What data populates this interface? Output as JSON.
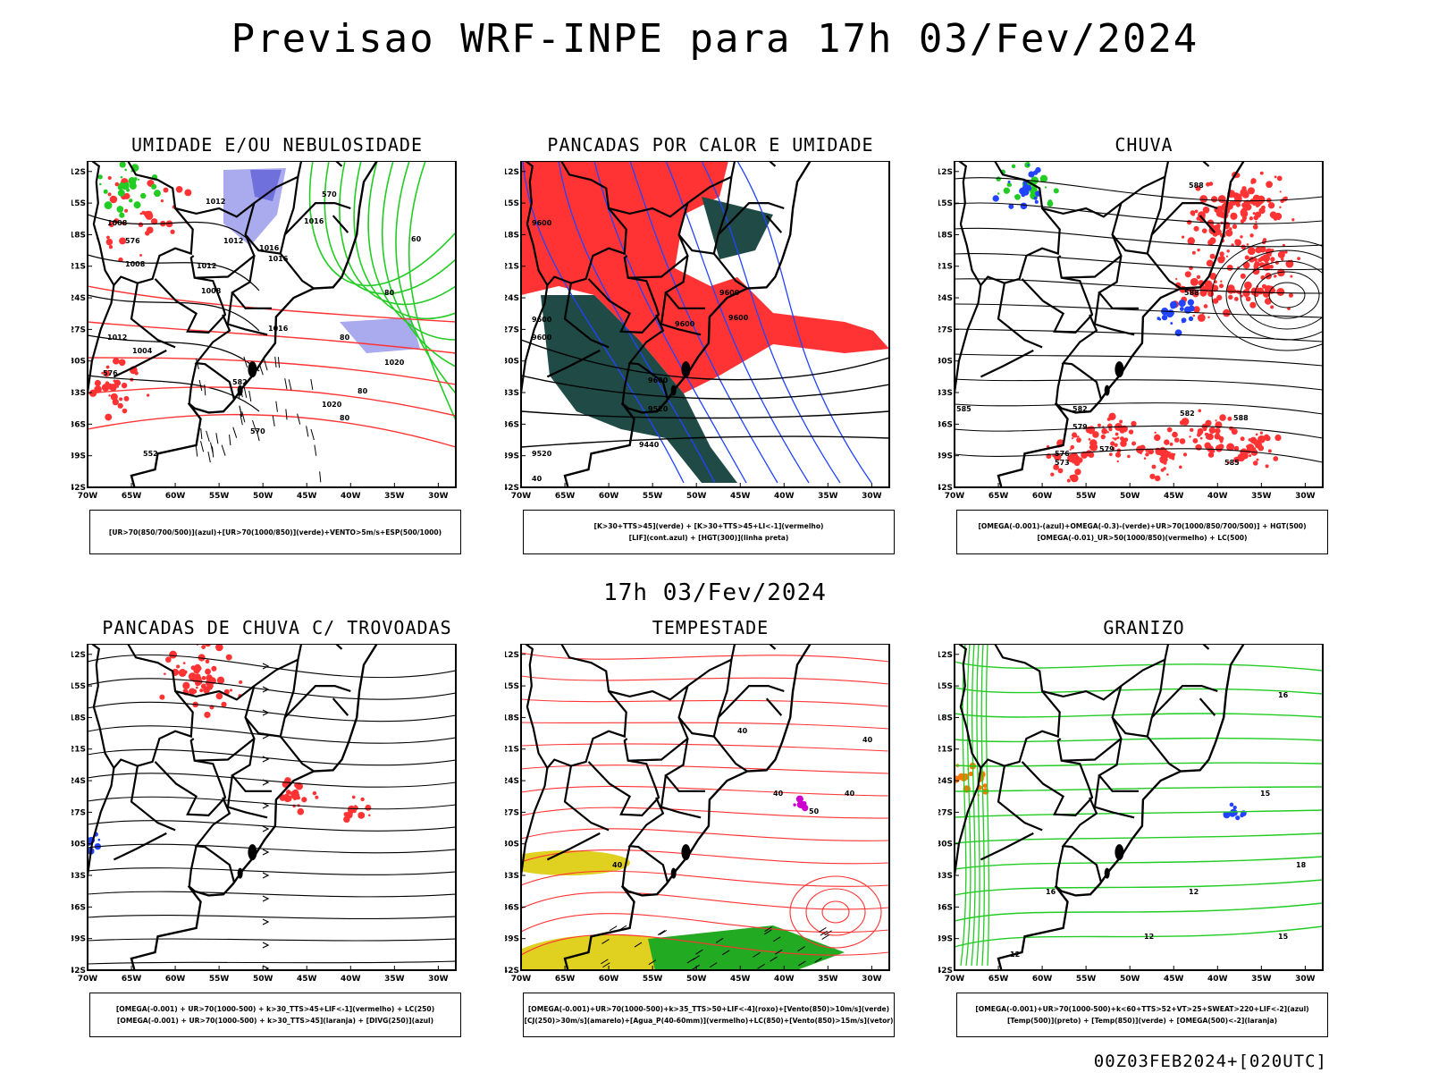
{
  "title": "Previsao WRF-INPE  para 17h 03/Fev/2024",
  "subtitle": "17h 03/Fev/2024",
  "footer": "00Z03FEB2024+[020UTC]",
  "axes": {
    "lat_labels": [
      "12S",
      "15S",
      "18S",
      "21S",
      "24S",
      "27S",
      "30S",
      "33S",
      "36S",
      "39S",
      "42S"
    ],
    "lon_labels": [
      "70W",
      "65W",
      "60W",
      "55W",
      "50W",
      "45W",
      "40W",
      "35W",
      "30W"
    ]
  },
  "colors": {
    "green": "#22cc22",
    "red": "#ff3333",
    "blue": "#2244ff",
    "lavender": "#aaaaee",
    "darkteal": "#1f4a45",
    "yellow": "#e0d020",
    "orange": "#ff7700",
    "magenta": "#cc00cc"
  },
  "panels": [
    {
      "title": "UMIDADE E/OU NEBULOSIDADE",
      "legend": [
        "[UR>70(850/700/500)](azul)+[UR>70(1000/850)](verde)+VENTO>5m/s+ESP(500/1000)"
      ],
      "contour_labels": [
        "1012",
        "1012",
        "1008",
        "1008",
        "1012",
        "1016",
        "1016",
        "1008",
        "1004",
        "1012",
        "1016",
        "1020",
        "1020",
        "1016",
        "570",
        "576",
        "582",
        "576",
        "570",
        "552",
        "60",
        "80",
        "80",
        "80",
        "80"
      ]
    },
    {
      "title": "PANCADAS POR CALOR E UMIDADE",
      "legend": [
        "[K>30+TTS>45](verde) + [K>30+TTS>45+LI<-1](vermelho)",
        "[LIF](cont.azul) + [HGT(300)](linha preta)"
      ],
      "contour_labels": [
        "9600",
        "9600",
        "9600",
        "9600",
        "9600",
        "9600",
        "9520",
        "9440",
        "9520",
        "9600",
        "40"
      ]
    },
    {
      "title": "CHUVA",
      "legend": [
        "[OMEGA(-0.001)-(azul)+OMEGA(-0.3)-(verde)+UR>70(1000/850/700/500)] + HGT(500)",
        "[OMEGA(-0.01)_UR>50(1000/850)(vermelho) + LC(500)"
      ],
      "contour_labels": [
        "588",
        "588",
        "585",
        "582",
        "582",
        "579",
        "576",
        "573",
        "579",
        "588",
        "585"
      ]
    },
    {
      "title": "PANCADAS DE CHUVA C/ TROVOADAS",
      "legend": [
        "[OMEGA(-0.001) + UR>70(1000-500) + k>30_TTS>45+LIF<-1](vermelho) + LC(250)",
        "[OMEGA(-0.001) + UR>70(1000-500) + k>30_TTS>45](laranja) + [DIVG(250)](azul)"
      ],
      "contour_labels": []
    },
    {
      "title": "TEMPESTADE",
      "legend": [
        "[OMEGA(-0.001)+UR>70(1000-500)+k>35_TTS>50+LIF<-4](roxo)+[Vento(850)>10m/s](verde)",
        "[CJ(250)>30m/s](amarelo)+[Agua_P(40-60mm)](vermelho)+LC(850)+[Vento(850)>15m/s](vetor)"
      ],
      "contour_labels": [
        "40",
        "40",
        "40",
        "40",
        "50",
        "40"
      ]
    },
    {
      "title": "GRANIZO",
      "legend": [
        "[OMEGA(-0.001)+UR>70(1000-500)+k<60+TTS>52+VT>25+SWEAT>220+LIF<-2](azul)",
        "[Temp(500)](preto) + [Temp(850)](verde) + [OMEGA(500)<-2](laranja)"
      ],
      "contour_labels": [
        "16",
        "15",
        "12",
        "18",
        "12",
        "16",
        "12",
        "15"
      ]
    }
  ]
}
